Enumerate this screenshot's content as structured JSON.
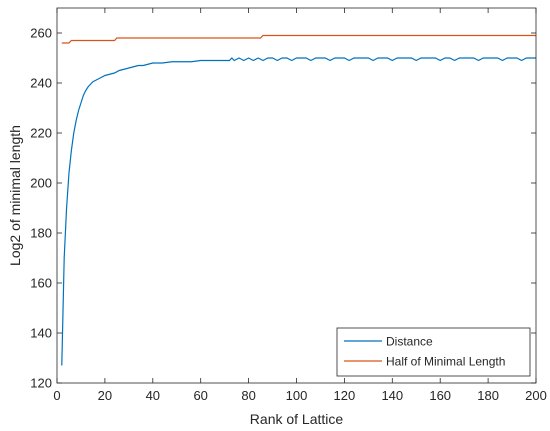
{
  "chart_data": {
    "type": "line",
    "title": "",
    "xlabel": "Rank of Lattice",
    "ylabel": "Log2 of minimal length",
    "xlim": [
      0,
      200
    ],
    "ylim": [
      120,
      270
    ],
    "xticks": [
      0,
      20,
      40,
      60,
      80,
      100,
      120,
      140,
      160,
      180,
      200
    ],
    "yticks": [
      120,
      140,
      160,
      180,
      200,
      220,
      240,
      260
    ],
    "grid": false,
    "legend_position": "bottom-right",
    "series": [
      {
        "name": "Distance",
        "color": "#0072BD",
        "x": [
          2,
          3,
          4,
          5,
          6,
          7,
          8,
          9,
          10,
          11,
          12,
          13,
          14,
          15,
          16,
          17,
          18,
          19,
          20,
          22,
          24,
          26,
          28,
          30,
          32,
          34,
          36,
          38,
          40,
          44,
          48,
          52,
          56,
          60,
          64,
          68,
          72,
          73,
          74,
          76,
          78,
          80,
          82,
          84,
          86,
          88,
          90,
          92,
          94,
          96,
          98,
          100,
          102,
          104,
          106,
          108,
          110,
          112,
          114,
          116,
          118,
          120,
          122,
          124,
          126,
          128,
          130,
          132,
          134,
          136,
          138,
          140,
          142,
          144,
          146,
          148,
          150,
          152,
          154,
          156,
          158,
          160,
          162,
          164,
          166,
          168,
          170,
          172,
          174,
          176,
          178,
          180,
          182,
          184,
          186,
          188,
          190,
          192,
          194,
          196,
          198,
          200
        ],
        "values": [
          127,
          170,
          190,
          204,
          213,
          220,
          225,
          229,
          232,
          235,
          237,
          238.5,
          239.5,
          240.5,
          241,
          241.5,
          242,
          242.5,
          243,
          243.5,
          244,
          245,
          245.5,
          246,
          246.5,
          247,
          247,
          247.5,
          248,
          248,
          248.5,
          248.5,
          248.5,
          249,
          249,
          249,
          249,
          250,
          249,
          250,
          249,
          250,
          249,
          250,
          249,
          250,
          250,
          249,
          250,
          250,
          249,
          250,
          250,
          250,
          249,
          250,
          250,
          250,
          249,
          250,
          250,
          250,
          249,
          250,
          250,
          250,
          250,
          249,
          250,
          250,
          250,
          249,
          250,
          250,
          250,
          250,
          249,
          250,
          250,
          250,
          250,
          249,
          250,
          250,
          249,
          250,
          250,
          250,
          250,
          249,
          250,
          250,
          250,
          250,
          249,
          250,
          250,
          250,
          249,
          250,
          250,
          250
        ]
      },
      {
        "name": "Half of Minimal Length",
        "color": "#D95319",
        "x": [
          2,
          5,
          6,
          24,
          25,
          85,
          86,
          200
        ],
        "values": [
          256,
          256,
          257,
          257,
          258,
          258,
          259,
          259
        ]
      }
    ]
  }
}
